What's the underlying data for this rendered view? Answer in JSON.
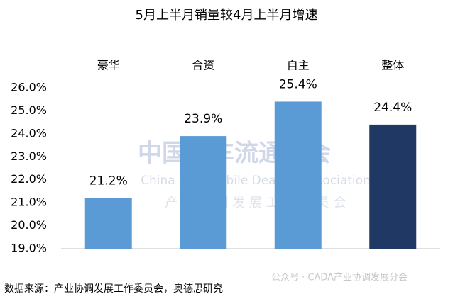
{
  "chart_data": {
    "type": "bar",
    "title": "5月上半月销量较4月上半月增速",
    "categories": [
      "豪华",
      "合资",
      "自主",
      "整体"
    ],
    "values": [
      21.2,
      23.9,
      25.4,
      24.4
    ],
    "value_labels": [
      "21.2%",
      "23.9%",
      "25.4%",
      "24.4%"
    ],
    "colors": [
      "#5b9bd5",
      "#5b9bd5",
      "#5b9bd5",
      "#203864"
    ],
    "ylim": [
      19,
      26
    ],
    "yticks": [
      {
        "value": 19,
        "label": "19.0%"
      },
      {
        "value": 20,
        "label": "20.0%"
      },
      {
        "value": 21,
        "label": "21.0%"
      },
      {
        "value": 22,
        "label": "22.0%"
      },
      {
        "value": 23,
        "label": "23.0%"
      },
      {
        "value": 24,
        "label": "24.0%"
      },
      {
        "value": 25,
        "label": "25.0%"
      },
      {
        "value": 26,
        "label": "26.0%"
      }
    ],
    "grid": false,
    "source": "数据来源：产业协调发展工作委员会，奥德思研究",
    "watermark": [
      "中国汽车流通协会",
      "China Automobile Dealers Association",
      "产 业 协 调 发 展 工 作 委 员 会",
      "公众号 · CADA产业协调发展分会"
    ]
  }
}
